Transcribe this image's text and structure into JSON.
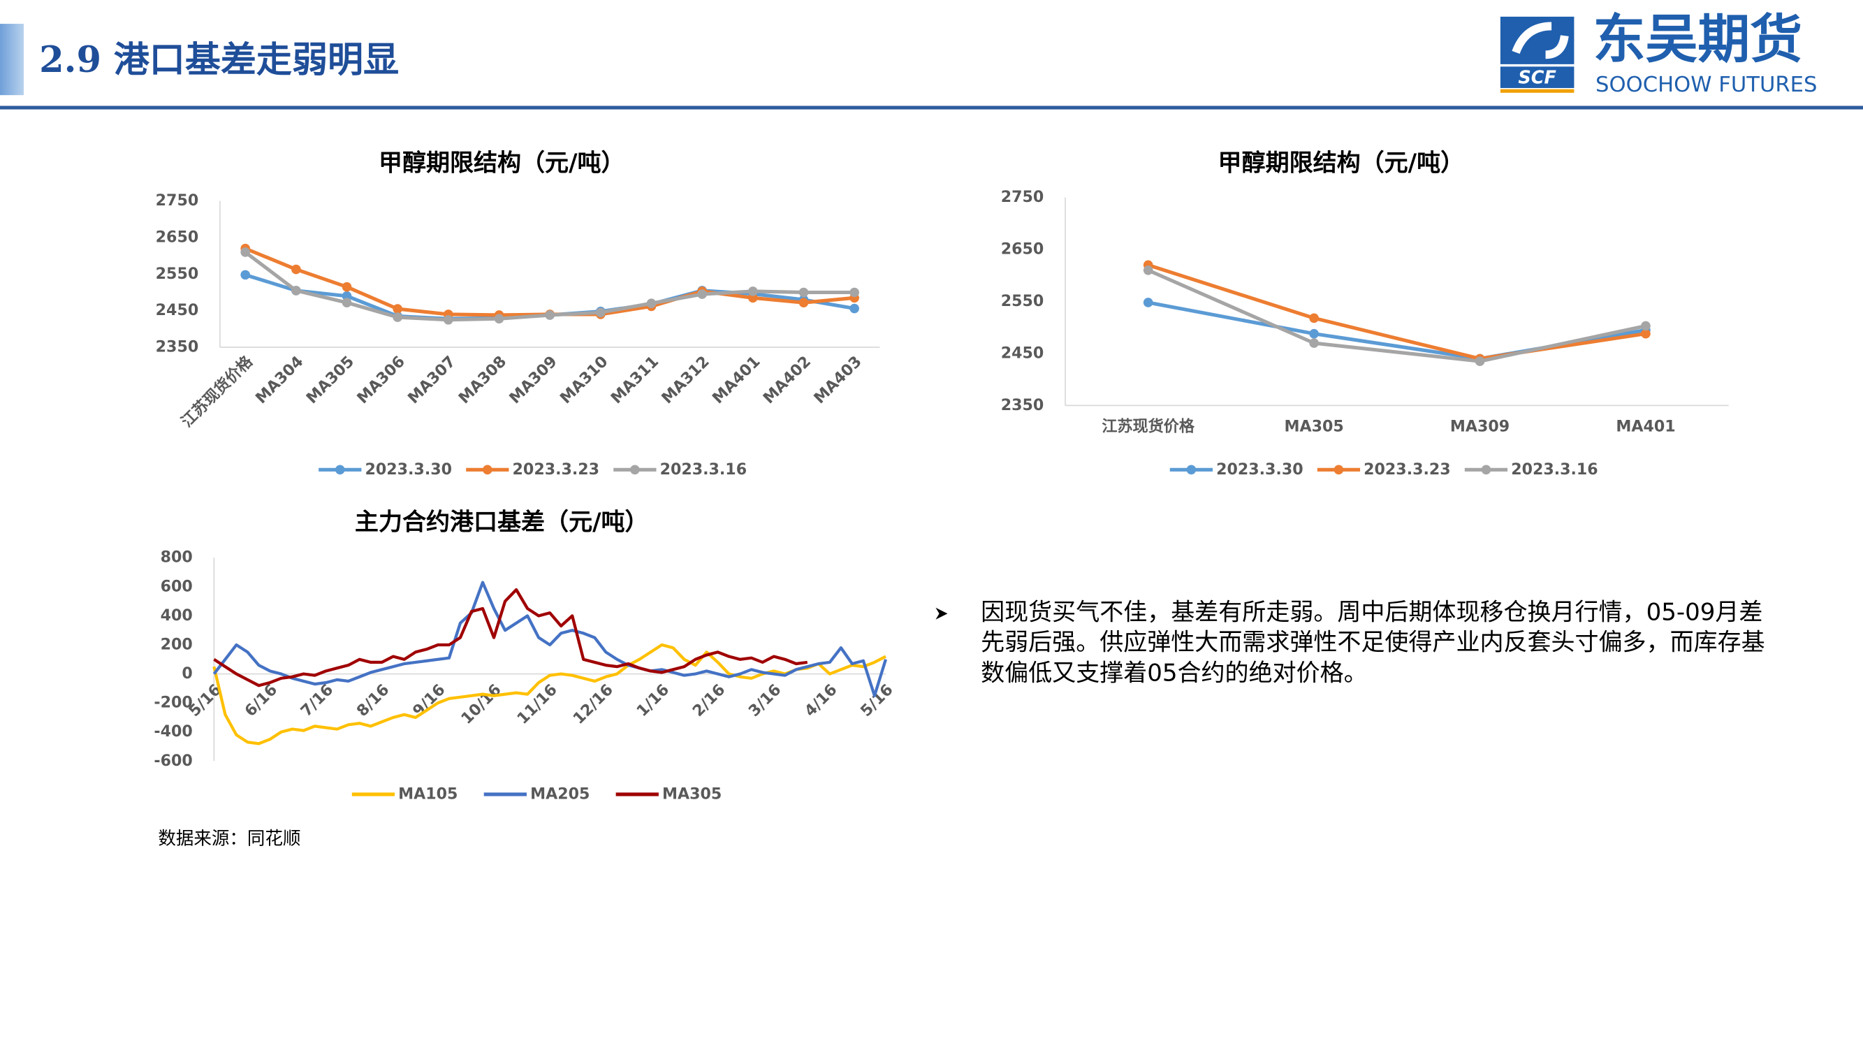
{
  "header": {
    "title": "2.9 港口基差走弱明显"
  },
  "logo": {
    "mark": "SCF",
    "name": "东吴期货",
    "english": "SOOCHOW FUTURES"
  },
  "chart_data": [
    {
      "type": "line",
      "title": "甲醇期限结构（元/吨）",
      "categories": [
        "江苏现货价格",
        "MA304",
        "MA305",
        "MA306",
        "MA307",
        "MA308",
        "MA309",
        "MA310",
        "MA311",
        "MA312",
        "MA401",
        "MA402",
        "MA403"
      ],
      "series": [
        {
          "name": "2023.3.30",
          "color": "#5b9bd5",
          "values": [
            2548,
            2505,
            2490,
            2435,
            2428,
            2430,
            2438,
            2448,
            2468,
            2505,
            2496,
            2480,
            2456
          ]
        },
        {
          "name": "2023.3.23",
          "color": "#ed7d31",
          "values": [
            2620,
            2563,
            2515,
            2455,
            2440,
            2438,
            2440,
            2440,
            2462,
            2503,
            2485,
            2472,
            2485
          ]
        },
        {
          "name": "2023.3.16",
          "color": "#a5a5a5",
          "values": [
            2610,
            2505,
            2472,
            2432,
            2425,
            2428,
            2438,
            2445,
            2470,
            2495,
            2503,
            2500,
            2500
          ]
        }
      ],
      "ylim": [
        2350,
        2750
      ],
      "yticks": [
        2350,
        2450,
        2550,
        2650,
        2750
      ],
      "grid": false,
      "markers": true,
      "legend": "bottom"
    },
    {
      "type": "line",
      "title": "甲醇期限结构（元/吨）",
      "categories": [
        "江苏现货价格",
        "MA305",
        "MA309",
        "MA401"
      ],
      "series": [
        {
          "name": "2023.3.30",
          "color": "#5b9bd5",
          "values": [
            2548,
            2488,
            2440,
            2495
          ]
        },
        {
          "name": "2023.3.23",
          "color": "#ed7d31",
          "values": [
            2620,
            2518,
            2440,
            2488
          ]
        },
        {
          "name": "2023.3.16",
          "color": "#a5a5a5",
          "values": [
            2610,
            2470,
            2435,
            2503
          ]
        }
      ],
      "ylim": [
        2350,
        2750
      ],
      "yticks": [
        2350,
        2450,
        2550,
        2650,
        2750
      ],
      "grid": false,
      "markers": true,
      "legend": "bottom"
    },
    {
      "type": "line",
      "title": "主力合约港口基差（元/吨）",
      "categories": [
        "5/16",
        null,
        null,
        null,
        null,
        "6/16",
        null,
        null,
        null,
        null,
        "7/16",
        null,
        null,
        null,
        null,
        "8/16",
        null,
        null,
        null,
        null,
        "9/16",
        null,
        null,
        null,
        null,
        "10/16",
        null,
        null,
        null,
        null,
        "11/16",
        null,
        null,
        null,
        null,
        "12/16",
        null,
        null,
        null,
        null,
        "1/16",
        null,
        null,
        null,
        null,
        "2/16",
        null,
        null,
        null,
        null,
        "3/16",
        null,
        null,
        null,
        null,
        "4/16",
        null,
        null,
        null,
        null,
        "5/16"
      ],
      "series": [
        {
          "name": "MA105",
          "color": "#ffc000",
          "values": [
            50,
            -280,
            -420,
            -470,
            -480,
            -450,
            -400,
            -380,
            -390,
            -360,
            -370,
            -380,
            -350,
            -340,
            -360,
            -330,
            -300,
            -280,
            -300,
            -250,
            -200,
            -170,
            -160,
            -150,
            -140,
            -150,
            -140,
            -130,
            -140,
            -60,
            -10,
            0,
            -10,
            -30,
            -50,
            -20,
            0,
            60,
            100,
            150,
            200,
            180,
            100,
            60,
            150,
            80,
            0,
            -20,
            -30,
            0,
            20,
            0,
            30,
            40,
            70,
            0,
            30,
            60,
            50,
            80,
            120
          ]
        },
        {
          "name": "MA205",
          "color": "#4472c4",
          "values": [
            0,
            100,
            200,
            150,
            60,
            20,
            0,
            -30,
            -50,
            -70,
            -60,
            -40,
            -50,
            -20,
            10,
            30,
            50,
            70,
            80,
            90,
            100,
            110,
            350,
            420,
            630,
            450,
            300,
            350,
            400,
            250,
            200,
            280,
            300,
            280,
            250,
            150,
            100,
            60,
            40,
            20,
            30,
            10,
            -10,
            0,
            20,
            0,
            -20,
            0,
            30,
            10,
            0,
            -10,
            30,
            50,
            70,
            80,
            180,
            70,
            90,
            -150,
            100
          ]
        },
        {
          "name": "MA305",
          "color": "#a00000",
          "values": [
            100,
            50,
            0,
            -40,
            -80,
            -60,
            -30,
            -20,
            0,
            -10,
            20,
            40,
            60,
            100,
            80,
            80,
            120,
            100,
            150,
            170,
            200,
            200,
            250,
            430,
            450,
            250,
            500,
            580,
            450,
            400,
            420,
            330,
            400,
            100,
            80,
            60,
            50,
            70,
            40,
            20,
            10,
            30,
            50,
            100,
            130,
            150,
            120,
            100,
            110,
            80,
            120,
            100,
            70,
            80,
            null,
            null,
            null,
            null,
            null,
            null,
            null
          ]
        }
      ],
      "ylim": [
        -600,
        800
      ],
      "yticks": [
        -600,
        -400,
        -200,
        0,
        200,
        400,
        600,
        800
      ],
      "grid": false,
      "markers": false,
      "legend": "bottom"
    }
  ],
  "body": {
    "lines": [
      "因现货买气不佳，基差有所走弱。周中后期体现移仓换月行情，05-09月差",
      "先弱后强。供应弹性大而需求弹性不足使得产业内反套头寸偏多，而库存基",
      "数偏低又支撑着05合约的绝对价格。"
    ]
  },
  "source": "数据来源：同花顺"
}
